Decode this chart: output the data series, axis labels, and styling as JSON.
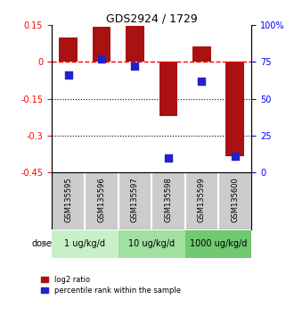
{
  "title": "GDS2924 / 1729",
  "samples": [
    "GSM135595",
    "GSM135596",
    "GSM135597",
    "GSM135598",
    "GSM135599",
    "GSM135600"
  ],
  "log2_ratio": [
    0.1,
    0.145,
    0.148,
    -0.22,
    0.065,
    -0.385
  ],
  "percentile_rank": [
    66,
    77,
    72,
    10,
    62,
    11
  ],
  "doses": [
    {
      "label": "1 ug/kg/d",
      "samples": [
        0,
        1
      ],
      "color": "#c8f0c8"
    },
    {
      "label": "10 ug/kg/d",
      "samples": [
        2,
        3
      ],
      "color": "#a0e0a0"
    },
    {
      "label": "1000 ug/kg/d",
      "samples": [
        4,
        5
      ],
      "color": "#70c870"
    }
  ],
  "ylim_left": [
    -0.45,
    0.15
  ],
  "ylim_right": [
    0,
    100
  ],
  "yticks_left": [
    0.15,
    0,
    -0.15,
    -0.3,
    -0.45
  ],
  "yticks_right": [
    100,
    75,
    50,
    25,
    0
  ],
  "ytick_labels_right": [
    "100%",
    "75",
    "50",
    "25",
    "0"
  ],
  "bar_color": "#aa1111",
  "dot_color": "#2222cc",
  "dotted_lines": [
    -0.15,
    -0.3
  ],
  "bar_width": 0.55,
  "background_color": "#ffffff",
  "sample_bg_color": "#cccccc",
  "dose_label": "dose",
  "legend_entries": [
    "log2 ratio",
    "percentile rank within the sample"
  ]
}
